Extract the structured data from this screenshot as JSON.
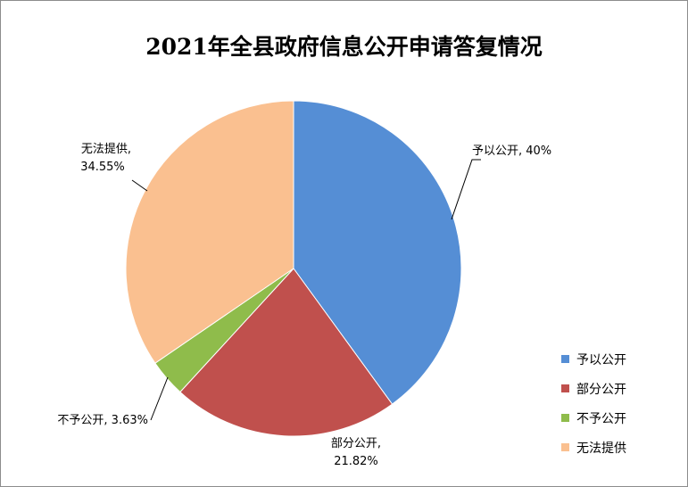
{
  "chart_data": {
    "type": "pie",
    "title": "2021年全县政府信息公开申请答复情况",
    "categories": [
      "予以公开",
      "部分公开",
      "不予公开",
      "无法提供"
    ],
    "values": [
      40,
      21.82,
      3.63,
      34.55
    ],
    "unit": "%",
    "colors": [
      "#558ed5",
      "#c0504d",
      "#8fbc4b",
      "#fac090"
    ],
    "data_labels": [
      [
        "予以公开, 40%"
      ],
      [
        "部分公开,",
        "21.82%"
      ],
      [
        "不予公开, 3.63%"
      ],
      [
        "无法提供,",
        "34.55%"
      ]
    ],
    "legend": {
      "position": "bottom-right",
      "items": [
        "予以公开",
        "部分公开",
        "不予公开",
        "无法提供"
      ]
    }
  }
}
